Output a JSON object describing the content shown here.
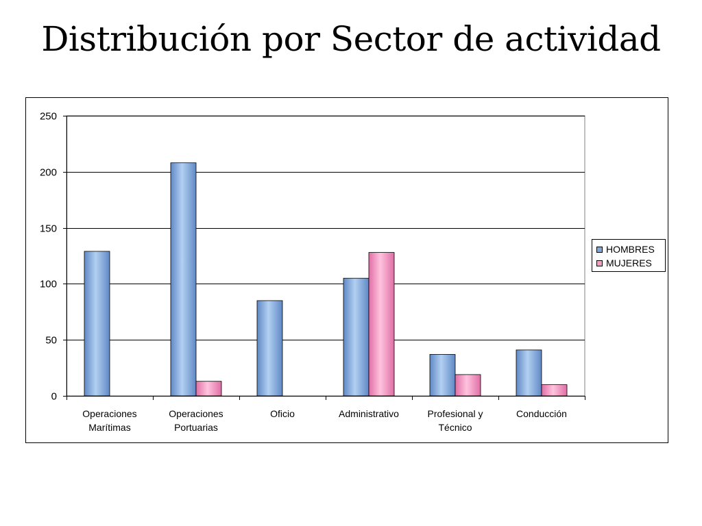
{
  "slide": {
    "title": "Distribución por Sector de actividad"
  },
  "colors": {
    "hombres": "#7ea9dc",
    "mujeres": "#f79ac4",
    "grid": "#000000"
  },
  "chart_data": {
    "type": "bar",
    "title": "",
    "xlabel": "",
    "ylabel": "",
    "ylim": [
      0,
      250
    ],
    "yticks": [
      0,
      50,
      100,
      150,
      200,
      250
    ],
    "grid": true,
    "legend_position": "right",
    "categories": [
      [
        "Operaciones",
        "Marítimas"
      ],
      [
        "Operaciones",
        "Portuarias"
      ],
      [
        "Oficio"
      ],
      [
        "Administrativo"
      ],
      [
        "Profesional y",
        "Técnico"
      ],
      [
        "Conducción"
      ]
    ],
    "series": [
      {
        "name": "HOMBRES",
        "values": [
          129,
          208,
          85,
          105,
          37,
          41
        ]
      },
      {
        "name": "MUJERES",
        "values": [
          0,
          13,
          0,
          128,
          19,
          10
        ]
      }
    ]
  }
}
